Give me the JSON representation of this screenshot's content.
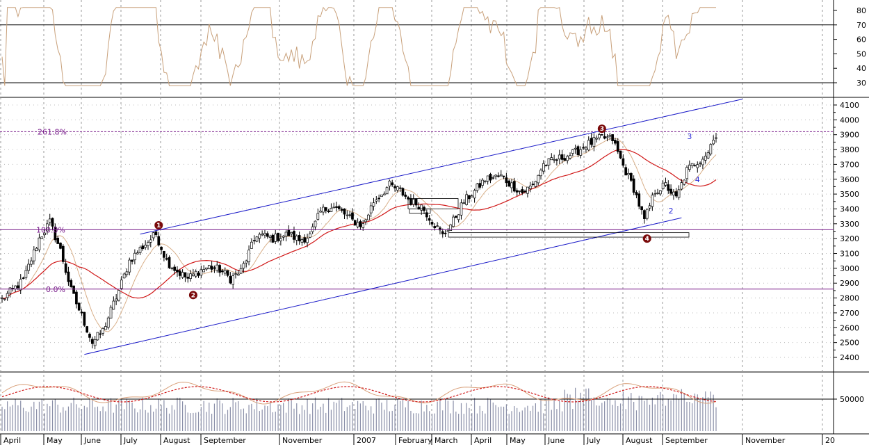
{
  "chart_data": {
    "type": "candlestick",
    "price_axis": {
      "ticks": [
        2400,
        2500,
        2600,
        2700,
        2800,
        2900,
        3000,
        3100,
        3200,
        3300,
        3400,
        3500,
        3600,
        3700,
        3800,
        3900,
        4000,
        4100
      ]
    },
    "rsi_axis": {
      "ticks": [
        30,
        40,
        50,
        60,
        70,
        80
      ],
      "ylim": [
        28,
        85
      ]
    },
    "volume_axis": {
      "ticks": [
        "50000"
      ]
    },
    "months": [
      "April",
      "May",
      "June",
      "July",
      "August",
      "September",
      "November",
      "2007",
      "February",
      "March",
      "April",
      "May",
      "June",
      "July",
      "August",
      "September",
      "November",
      "20"
    ],
    "fibonacci": [
      {
        "label": "261.8%",
        "value": 3920
      },
      {
        "label": "100.0%",
        "value": 3260
      },
      {
        "label": "0.0%",
        "value": 2860
      }
    ],
    "elliott_circled": [
      {
        "label": "1",
        "index": 59,
        "value": 3290
      },
      {
        "label": "2",
        "index": 72,
        "value": 2820
      },
      {
        "label": "3",
        "index": 226,
        "value": 3940
      },
      {
        "label": "4",
        "index": 243,
        "value": 3200
      }
    ],
    "elliott_minor": [
      {
        "label": "2",
        "index": 252,
        "value": 3370
      },
      {
        "label": "3",
        "index": 259,
        "value": 3870
      },
      {
        "label": "4",
        "index": 262,
        "value": 3580
      }
    ],
    "channel": {
      "upper": [
        {
          "index": 52,
          "value": 3230
        },
        {
          "index": 279,
          "value": 4140
        }
      ],
      "lower": [
        {
          "index": 31,
          "value": 2420
        },
        {
          "index": 256,
          "value": 3340
        }
      ]
    },
    "closes_keypoints": [
      [
        0,
        2790
      ],
      [
        8,
        2920
      ],
      [
        14,
        3200
      ],
      [
        18,
        3310
      ],
      [
        22,
        3120
      ],
      [
        26,
        2850
      ],
      [
        30,
        2680
      ],
      [
        34,
        2500
      ],
      [
        38,
        2580
      ],
      [
        44,
        2850
      ],
      [
        48,
        3050
      ],
      [
        52,
        3130
      ],
      [
        58,
        3230
      ],
      [
        62,
        3050
      ],
      [
        66,
        2980
      ],
      [
        70,
        2930
      ],
      [
        74,
        2980
      ],
      [
        78,
        3010
      ],
      [
        82,
        2990
      ],
      [
        86,
        2930
      ],
      [
        90,
        2980
      ],
      [
        96,
        3230
      ],
      [
        102,
        3200
      ],
      [
        108,
        3230
      ],
      [
        112,
        3190
      ],
      [
        116,
        3220
      ],
      [
        120,
        3380
      ],
      [
        124,
        3420
      ],
      [
        128,
        3380
      ],
      [
        132,
        3320
      ],
      [
        136,
        3290
      ],
      [
        140,
        3450
      ],
      [
        146,
        3560
      ],
      [
        150,
        3520
      ],
      [
        154,
        3450
      ],
      [
        158,
        3420
      ],
      [
        162,
        3320
      ],
      [
        166,
        3220
      ],
      [
        170,
        3320
      ],
      [
        174,
        3450
      ],
      [
        178,
        3520
      ],
      [
        182,
        3600
      ],
      [
        188,
        3620
      ],
      [
        192,
        3560
      ],
      [
        196,
        3510
      ],
      [
        200,
        3560
      ],
      [
        204,
        3700
      ],
      [
        210,
        3740
      ],
      [
        216,
        3780
      ],
      [
        220,
        3830
      ],
      [
        226,
        3880
      ],
      [
        230,
        3870
      ],
      [
        234,
        3690
      ],
      [
        238,
        3540
      ],
      [
        242,
        3320
      ],
      [
        246,
        3520
      ],
      [
        250,
        3560
      ],
      [
        254,
        3470
      ],
      [
        258,
        3660
      ],
      [
        262,
        3720
      ],
      [
        266,
        3780
      ],
      [
        268,
        3890
      ]
    ]
  }
}
